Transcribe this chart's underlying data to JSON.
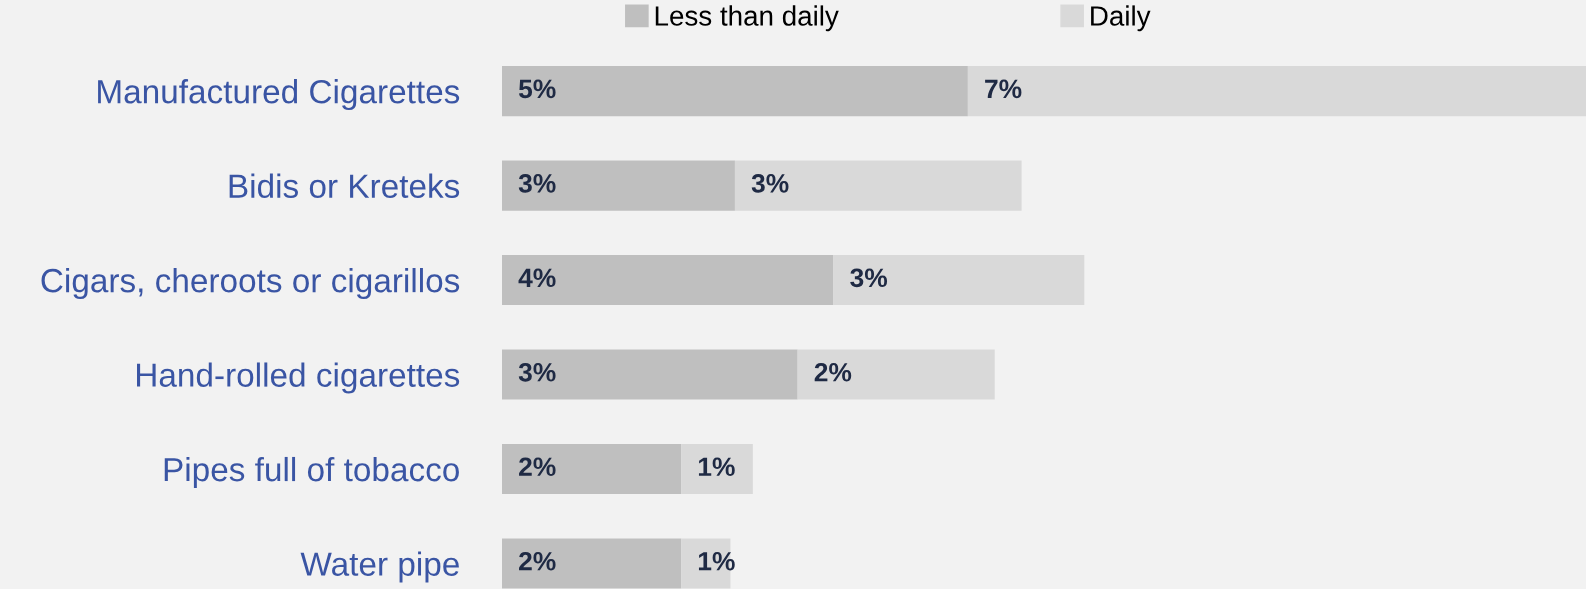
{
  "chart_data": {
    "type": "bar",
    "orientation": "horizontal",
    "stacked": true,
    "legend": "top",
    "grid": false,
    "categories": [
      "Manufactured Cigarettes",
      "Bidis or Kreteks",
      "Cigars, cheroots or cigarillos",
      "Hand-rolled cigarettes",
      "Pipes full of tobacco",
      "Water pipe"
    ],
    "xlim": [
      0,
      12.1
    ],
    "series": [
      {
        "name": "Less than daily",
        "color": "#bfbfbf",
        "values": [
          5.2,
          2.6,
          3.7,
          3.3,
          2.0,
          2.0
        ],
        "value_labels": [
          "5%",
          "3%",
          "4%",
          "3%",
          "2%",
          "2%"
        ]
      },
      {
        "name": "Daily",
        "color": "#d9d9d9",
        "values": [
          6.9,
          3.2,
          2.8,
          2.2,
          0.8,
          0.55
        ],
        "value_labels": [
          "7%",
          "3%",
          "3%",
          "2%",
          "1%",
          "1%"
        ]
      }
    ]
  }
}
